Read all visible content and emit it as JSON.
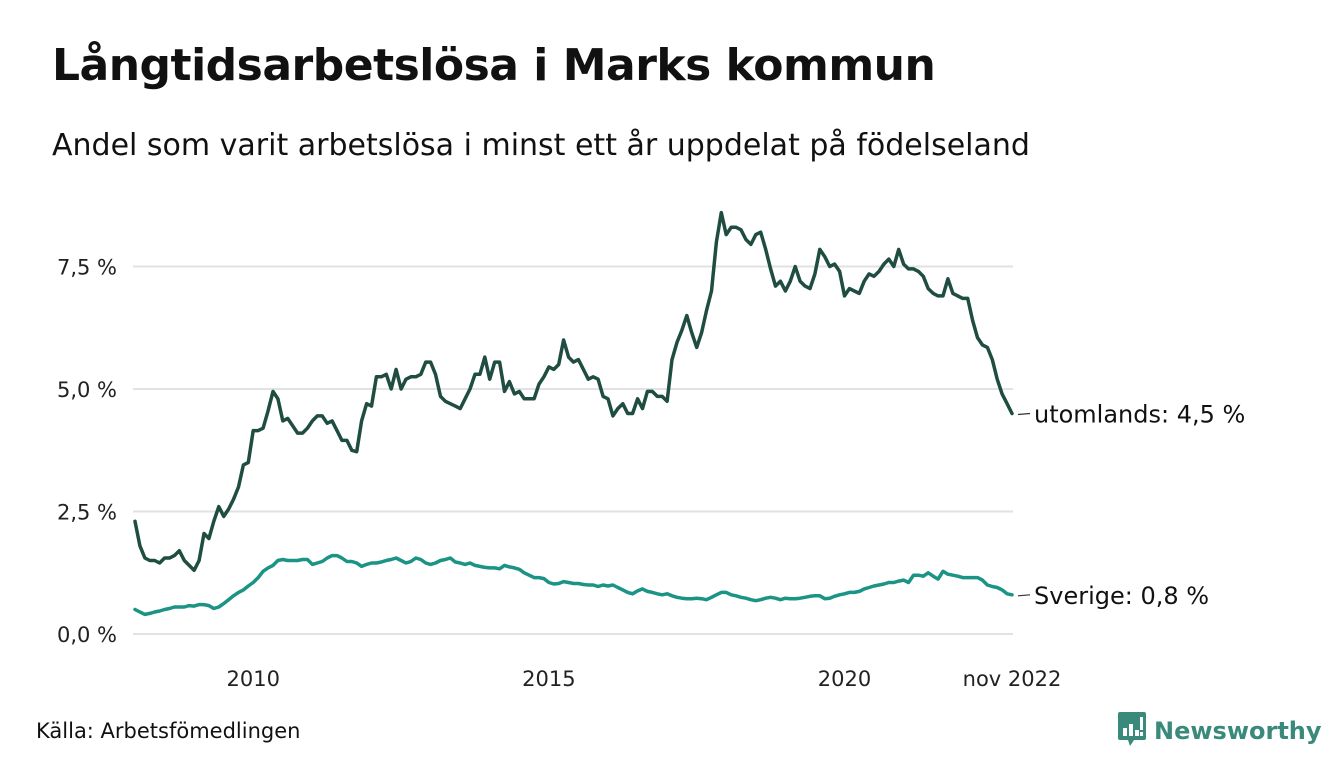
{
  "header": {
    "title": "Långtidsarbetslösa i Marks kommun",
    "subtitle": "Andel som varit arbetslösa i minst ett år uppdelat på födelseland"
  },
  "footer": {
    "source": "Källa: Arbetsfömedlingen",
    "brand": "Newsworthy",
    "brand_icon": "bar-chart-speech-bubble-icon",
    "brand_color": "#3a8a7c"
  },
  "chart_data": {
    "type": "line",
    "title": "Långtidsarbetslösa i Marks kommun",
    "subtitle": "Andel som varit arbetslösa i minst ett år uppdelat på födelseland",
    "xlabel": "",
    "ylabel": "",
    "x_start": "2008-01",
    "x_end": "2022-11",
    "x_frequency": "monthly",
    "x_ticks": [
      {
        "year": 2010,
        "label": "2010"
      },
      {
        "year": 2015,
        "label": "2015"
      },
      {
        "year": 2020,
        "label": "2020"
      },
      {
        "year": 2022.833,
        "label": "nov 2022"
      }
    ],
    "y_ticks": [
      {
        "value": 0,
        "label": "0,0 %"
      },
      {
        "value": 2.5,
        "label": "2,5 %"
      },
      {
        "value": 5,
        "label": "5,0 %"
      },
      {
        "value": 7.5,
        "label": "7,5 %"
      }
    ],
    "ylim": [
      0,
      8.8
    ],
    "grid": true,
    "legend": "end-of-line labels (right)",
    "series": [
      {
        "name": "utomlands",
        "end_label": "utomlands: 4,5 %",
        "color": "#1f4d41",
        "values": [
          2.3,
          1.8,
          1.55,
          1.5,
          1.5,
          1.45,
          1.55,
          1.55,
          1.6,
          1.7,
          1.5,
          1.4,
          1.3,
          1.5,
          2.05,
          1.95,
          2.3,
          2.6,
          2.4,
          2.55,
          2.75,
          3.0,
          3.45,
          3.5,
          4.15,
          4.15,
          4.2,
          4.55,
          4.95,
          4.8,
          4.35,
          4.4,
          4.25,
          4.1,
          4.1,
          4.2,
          4.35,
          4.45,
          4.45,
          4.3,
          4.35,
          4.15,
          3.95,
          3.95,
          3.75,
          3.72,
          4.35,
          4.7,
          4.65,
          5.25,
          5.25,
          5.3,
          5.0,
          5.4,
          5.0,
          5.2,
          5.25,
          5.25,
          5.3,
          5.55,
          5.55,
          5.3,
          4.85,
          4.75,
          4.7,
          4.65,
          4.6,
          4.8,
          5.0,
          5.3,
          5.3,
          5.65,
          5.2,
          5.55,
          5.55,
          4.95,
          5.15,
          4.9,
          4.95,
          4.8,
          4.8,
          4.8,
          5.1,
          5.25,
          5.45,
          5.4,
          5.5,
          6.0,
          5.65,
          5.55,
          5.6,
          5.4,
          5.2,
          5.25,
          5.2,
          4.85,
          4.8,
          4.45,
          4.6,
          4.7,
          4.5,
          4.5,
          4.8,
          4.6,
          4.95,
          4.95,
          4.85,
          4.85,
          4.75,
          5.6,
          5.95,
          6.2,
          6.5,
          6.15,
          5.85,
          6.15,
          6.6,
          7.0,
          8.0,
          8.6,
          8.15,
          8.3,
          8.3,
          8.25,
          8.05,
          7.95,
          8.15,
          8.2,
          7.85,
          7.45,
          7.1,
          7.2,
          7.0,
          7.2,
          7.5,
          7.2,
          7.1,
          7.05,
          7.35,
          7.85,
          7.7,
          7.5,
          7.55,
          7.4,
          6.9,
          7.05,
          7.0,
          6.95,
          7.2,
          7.35,
          7.3,
          7.4,
          7.55,
          7.65,
          7.5,
          7.85,
          7.55,
          7.45,
          7.45,
          7.4,
          7.3,
          7.05,
          6.95,
          6.9,
          6.9,
          7.25,
          6.95,
          6.9,
          6.85,
          6.85,
          6.4,
          6.05,
          5.9,
          5.85,
          5.6,
          5.2,
          4.9,
          4.7,
          4.5
        ]
      },
      {
        "name": "Sverige",
        "end_label": "Sverige: 0,8 %",
        "color": "#1b9385",
        "values": [
          0.5,
          0.45,
          0.4,
          0.42,
          0.45,
          0.47,
          0.5,
          0.52,
          0.55,
          0.55,
          0.55,
          0.58,
          0.57,
          0.6,
          0.6,
          0.58,
          0.52,
          0.55,
          0.62,
          0.7,
          0.78,
          0.85,
          0.9,
          0.98,
          1.05,
          1.15,
          1.28,
          1.35,
          1.4,
          1.5,
          1.52,
          1.5,
          1.5,
          1.5,
          1.52,
          1.52,
          1.42,
          1.45,
          1.48,
          1.55,
          1.6,
          1.6,
          1.55,
          1.48,
          1.48,
          1.45,
          1.38,
          1.42,
          1.45,
          1.45,
          1.47,
          1.5,
          1.52,
          1.55,
          1.5,
          1.45,
          1.48,
          1.55,
          1.52,
          1.45,
          1.42,
          1.45,
          1.5,
          1.52,
          1.55,
          1.47,
          1.45,
          1.42,
          1.45,
          1.4,
          1.38,
          1.36,
          1.35,
          1.35,
          1.33,
          1.4,
          1.37,
          1.35,
          1.32,
          1.25,
          1.2,
          1.15,
          1.15,
          1.13,
          1.05,
          1.02,
          1.03,
          1.07,
          1.05,
          1.03,
          1.03,
          1.01,
          1.0,
          1.0,
          0.97,
          1.0,
          0.98,
          1.0,
          0.95,
          0.9,
          0.85,
          0.82,
          0.88,
          0.92,
          0.87,
          0.85,
          0.82,
          0.8,
          0.82,
          0.78,
          0.75,
          0.73,
          0.72,
          0.72,
          0.73,
          0.72,
          0.7,
          0.75,
          0.8,
          0.85,
          0.85,
          0.8,
          0.78,
          0.75,
          0.73,
          0.7,
          0.68,
          0.7,
          0.73,
          0.75,
          0.73,
          0.7,
          0.73,
          0.72,
          0.72,
          0.73,
          0.75,
          0.77,
          0.78,
          0.78,
          0.72,
          0.73,
          0.77,
          0.8,
          0.82,
          0.85,
          0.85,
          0.87,
          0.92,
          0.95,
          0.98,
          1.0,
          1.02,
          1.05,
          1.05,
          1.08,
          1.1,
          1.05,
          1.2,
          1.2,
          1.18,
          1.25,
          1.18,
          1.12,
          1.28,
          1.22,
          1.2,
          1.18,
          1.15,
          1.15,
          1.15,
          1.15,
          1.1,
          1.0,
          0.97,
          0.95,
          0.9,
          0.82,
          0.8
        ]
      }
    ]
  }
}
